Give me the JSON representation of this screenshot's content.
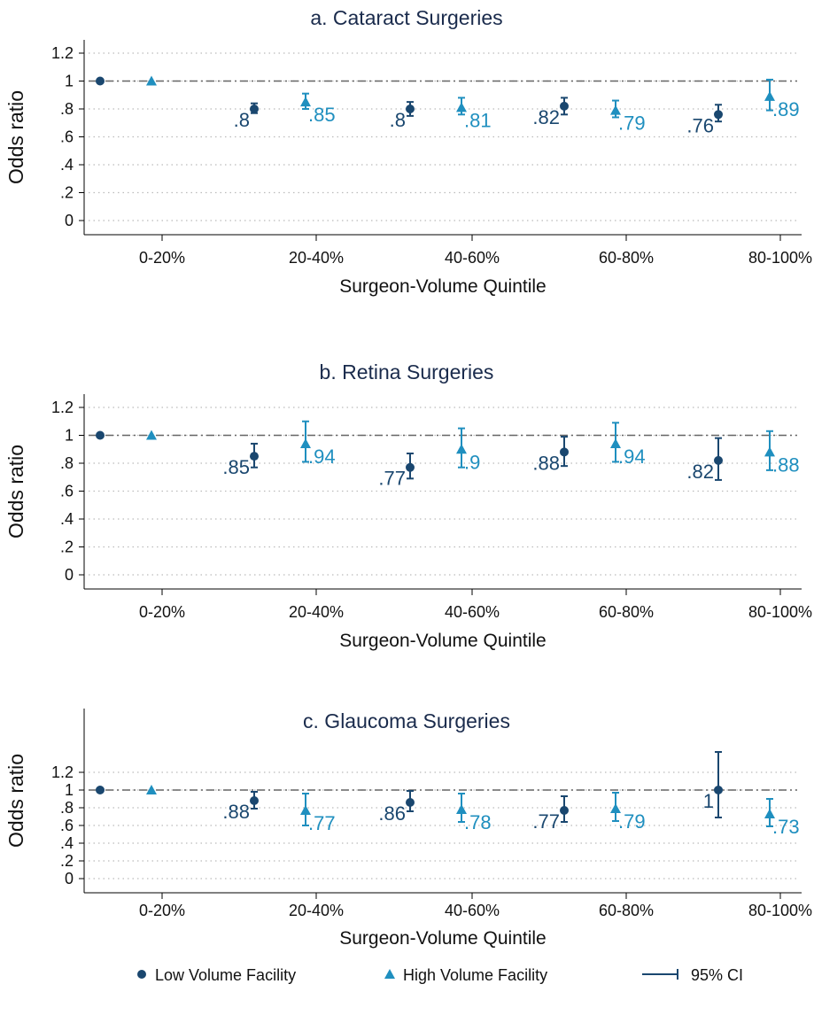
{
  "colors": {
    "low": "#1a476f",
    "high": "#1f8fbf",
    "reference_line": "#666666",
    "grid": "#bbbbbb"
  },
  "legend": {
    "position": "bottom",
    "items": [
      {
        "label": "Low Volume Facility",
        "marker": "circle"
      },
      {
        "label": "High Volume Facility",
        "marker": "triangle"
      },
      {
        "label": "95% CI",
        "marker": "capped-spike"
      }
    ]
  },
  "chart_data": [
    {
      "type": "scatter",
      "title": "a. Cataract Surgeries",
      "xlabel": "Surgeon-Volume Quintile",
      "ylabel": "Odds ratio",
      "categories": [
        "0-20%",
        "20-40%",
        "40-60%",
        "60-80%",
        "80-100%"
      ],
      "yticks": [
        "0",
        ".2",
        ".4",
        ".6",
        ".8",
        "1",
        "1.2"
      ],
      "ytick_values": [
        0,
        0.2,
        0.4,
        0.6,
        0.8,
        1,
        1.2
      ],
      "ylim": [
        -0.1,
        1.3
      ],
      "reference_line": 1,
      "grid": true,
      "series": [
        {
          "name": "Low Volume Facility",
          "values": [
            1,
            0.8,
            0.8,
            0.82,
            0.76
          ],
          "ci_low": [
            null,
            0.77,
            0.75,
            0.76,
            0.71
          ],
          "ci_high": [
            null,
            0.84,
            0.85,
            0.88,
            0.83
          ],
          "labels": [
            "",
            ".8",
            ".8",
            ".82",
            ".76"
          ]
        },
        {
          "name": "High Volume Facility",
          "values": [
            1,
            0.85,
            0.81,
            0.79,
            0.89
          ],
          "ci_low": [
            null,
            0.8,
            0.76,
            0.74,
            0.79
          ],
          "ci_high": [
            null,
            0.91,
            0.88,
            0.86,
            1.01
          ],
          "labels": [
            "",
            ".85",
            ".81",
            ".79",
            ".89"
          ]
        }
      ]
    },
    {
      "type": "scatter",
      "title": "b. Retina Surgeries",
      "xlabel": "Surgeon-Volume Quintile",
      "ylabel": "Odds ratio",
      "categories": [
        "0-20%",
        "20-40%",
        "40-60%",
        "60-80%",
        "80-100%"
      ],
      "yticks": [
        "0",
        ".2",
        ".4",
        ".6",
        ".8",
        "1",
        "1.2"
      ],
      "ytick_values": [
        0,
        0.2,
        0.4,
        0.6,
        0.8,
        1,
        1.2
      ],
      "ylim": [
        -0.1,
        1.3
      ],
      "reference_line": 1,
      "grid": true,
      "series": [
        {
          "name": "Low Volume Facility",
          "values": [
            1,
            0.85,
            0.77,
            0.88,
            0.82
          ],
          "ci_low": [
            null,
            0.77,
            0.69,
            0.78,
            0.68
          ],
          "ci_high": [
            null,
            0.94,
            0.87,
            0.99,
            0.98
          ],
          "labels": [
            "",
            ".85",
            ".77",
            ".88",
            ".82"
          ]
        },
        {
          "name": "High Volume Facility",
          "values": [
            1,
            0.94,
            0.9,
            0.94,
            0.88
          ],
          "ci_low": [
            null,
            0.81,
            0.77,
            0.81,
            0.75
          ],
          "ci_high": [
            null,
            1.1,
            1.05,
            1.09,
            1.03
          ],
          "labels": [
            "",
            ".94",
            ".9",
            ".94",
            ".88"
          ]
        }
      ]
    },
    {
      "type": "scatter",
      "title": "c. Glaucoma Surgeries",
      "xlabel": "Surgeon-Volume Quintile",
      "ylabel": "Odds ratio",
      "categories": [
        "0-20%",
        "20-40%",
        "40-60%",
        "60-80%",
        "80-100%"
      ],
      "yticks": [
        "0",
        ".2",
        ".4",
        ".6",
        ".8",
        "1",
        "1.2"
      ],
      "ytick_values": [
        0,
        0.2,
        0.4,
        0.6,
        0.8,
        1,
        1.2
      ],
      "ylim": [
        -0.1,
        1.5
      ],
      "reference_line": 1,
      "grid": true,
      "series": [
        {
          "name": "Low Volume Facility",
          "values": [
            1,
            0.88,
            0.86,
            0.77,
            1
          ],
          "ci_low": [
            null,
            0.79,
            0.76,
            0.64,
            0.69
          ],
          "ci_high": [
            null,
            0.98,
            0.99,
            0.93,
            1.43
          ],
          "labels": [
            "",
            ".88",
            ".86",
            ".77",
            "1"
          ]
        },
        {
          "name": "High Volume Facility",
          "values": [
            1,
            0.77,
            0.78,
            0.79,
            0.73
          ],
          "ci_low": [
            null,
            0.6,
            0.64,
            0.65,
            0.59
          ],
          "ci_high": [
            null,
            0.96,
            0.96,
            0.97,
            0.9
          ],
          "labels": [
            "",
            ".77",
            ".78",
            ".79",
            ".73"
          ]
        }
      ]
    }
  ]
}
